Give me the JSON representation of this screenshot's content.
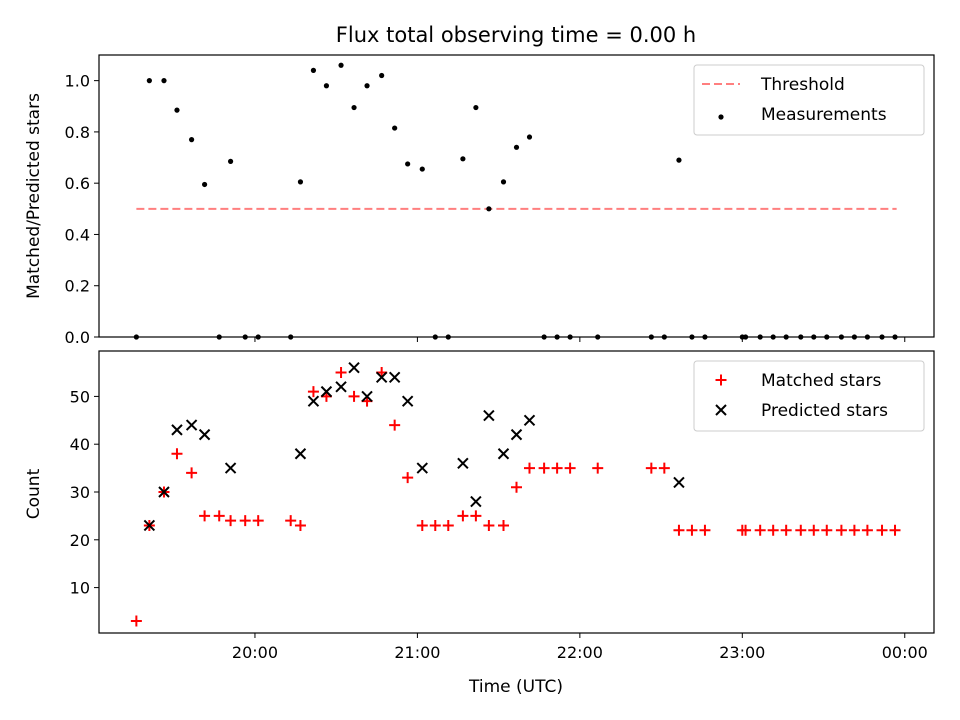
{
  "chart_data": {
    "title": "Flux total observing time = 0.00 h",
    "xlabel": "Time (UTC)",
    "x_unit": "hours",
    "xlim": [
      19.04,
      24.18
    ],
    "x_ticks": [
      {
        "value": 20,
        "label": "20:00"
      },
      {
        "value": 21,
        "label": "21:00"
      },
      {
        "value": 22,
        "label": "22:00"
      },
      {
        "value": 23,
        "label": "23:00"
      },
      {
        "value": 24,
        "label": "00:00"
      }
    ],
    "charts": [
      {
        "type": "scatter",
        "ylabel": "Matched/Predicted stars",
        "ylim": [
          0,
          1.1
        ],
        "y_ticks": [
          0.0,
          0.2,
          0.4,
          0.6,
          0.8,
          1.0
        ],
        "y_tick_labels": [
          "0.0",
          "0.2",
          "0.4",
          "0.6",
          "0.8",
          "1.0"
        ],
        "legend": "top-right",
        "threshold": {
          "name": "Threshold",
          "value": 0.5,
          "x_range": [
            19.27,
            23.95
          ],
          "color": "#ff7f7f"
        },
        "series": [
          {
            "name": "Measurements",
            "marker": "dot",
            "color": "#000000",
            "points": [
              [
                19.27,
                0.0
              ],
              [
                19.35,
                1.0
              ],
              [
                19.44,
                1.0
              ],
              [
                19.52,
                0.885
              ],
              [
                19.61,
                0.77
              ],
              [
                19.69,
                0.595
              ],
              [
                19.78,
                0.0
              ],
              [
                19.85,
                0.685
              ],
              [
                19.94,
                0.0
              ],
              [
                20.02,
                0.0
              ],
              [
                20.22,
                0.0
              ],
              [
                20.28,
                0.605
              ],
              [
                20.36,
                1.04
              ],
              [
                20.44,
                0.98
              ],
              [
                20.53,
                1.06
              ],
              [
                20.61,
                0.895
              ],
              [
                20.69,
                0.98
              ],
              [
                20.78,
                1.02
              ],
              [
                20.86,
                0.815
              ],
              [
                20.94,
                0.675
              ],
              [
                21.03,
                0.655
              ],
              [
                21.11,
                0.0
              ],
              [
                21.19,
                0.0
              ],
              [
                21.28,
                0.695
              ],
              [
                21.36,
                0.895
              ],
              [
                21.44,
                0.5
              ],
              [
                21.53,
                0.605
              ],
              [
                21.61,
                0.74
              ],
              [
                21.69,
                0.78
              ],
              [
                21.78,
                0.0
              ],
              [
                21.86,
                0.0
              ],
              [
                21.94,
                0.0
              ],
              [
                22.11,
                0.0
              ],
              [
                22.44,
                0.0
              ],
              [
                22.52,
                0.0
              ],
              [
                22.61,
                0.69
              ],
              [
                22.69,
                0.0
              ],
              [
                22.77,
                0.0
              ],
              [
                23.0,
                0.0
              ],
              [
                23.02,
                0.0
              ],
              [
                23.11,
                0.0
              ],
              [
                23.19,
                0.0
              ],
              [
                23.27,
                0.0
              ],
              [
                23.36,
                0.0
              ],
              [
                23.44,
                0.0
              ],
              [
                23.52,
                0.0
              ],
              [
                23.61,
                0.0
              ],
              [
                23.69,
                0.0
              ],
              [
                23.77,
                0.0
              ],
              [
                23.86,
                0.0
              ],
              [
                23.94,
                0.0
              ]
            ]
          }
        ]
      },
      {
        "type": "scatter",
        "ylabel": "Count",
        "ylim": [
          0.5,
          59.5
        ],
        "y_ticks": [
          10,
          20,
          30,
          40,
          50
        ],
        "y_tick_labels": [
          "10",
          "20",
          "30",
          "40",
          "50"
        ],
        "legend": "top-right",
        "series": [
          {
            "name": "Matched stars",
            "marker": "plus",
            "color": "#ff0000",
            "points": [
              [
                19.27,
                3
              ],
              [
                19.35,
                23
              ],
              [
                19.44,
                30
              ],
              [
                19.52,
                38
              ],
              [
                19.61,
                34
              ],
              [
                19.69,
                25
              ],
              [
                19.78,
                25
              ],
              [
                19.85,
                24
              ],
              [
                19.94,
                24
              ],
              [
                20.02,
                24
              ],
              [
                20.22,
                24
              ],
              [
                20.28,
                23
              ],
              [
                20.36,
                51
              ],
              [
                20.44,
                50
              ],
              [
                20.53,
                55
              ],
              [
                20.61,
                50
              ],
              [
                20.69,
                49
              ],
              [
                20.78,
                55
              ],
              [
                20.86,
                44
              ],
              [
                20.94,
                33
              ],
              [
                21.03,
                23
              ],
              [
                21.11,
                23
              ],
              [
                21.19,
                23
              ],
              [
                21.28,
                25
              ],
              [
                21.36,
                25
              ],
              [
                21.44,
                23
              ],
              [
                21.53,
                23
              ],
              [
                21.61,
                31
              ],
              [
                21.69,
                35
              ],
              [
                21.78,
                35
              ],
              [
                21.86,
                35
              ],
              [
                21.94,
                35
              ],
              [
                22.11,
                35
              ],
              [
                22.44,
                35
              ],
              [
                22.52,
                35
              ],
              [
                22.61,
                22
              ],
              [
                22.69,
                22
              ],
              [
                22.77,
                22
              ],
              [
                23.0,
                22
              ],
              [
                23.02,
                22
              ],
              [
                23.11,
                22
              ],
              [
                23.19,
                22
              ],
              [
                23.27,
                22
              ],
              [
                23.36,
                22
              ],
              [
                23.44,
                22
              ],
              [
                23.52,
                22
              ],
              [
                23.61,
                22
              ],
              [
                23.69,
                22
              ],
              [
                23.77,
                22
              ],
              [
                23.86,
                22
              ],
              [
                23.94,
                22
              ]
            ]
          },
          {
            "name": "Predicted stars",
            "marker": "x",
            "color": "#000000",
            "points": [
              [
                19.35,
                23
              ],
              [
                19.44,
                30
              ],
              [
                19.52,
                43
              ],
              [
                19.61,
                44
              ],
              [
                19.69,
                42
              ],
              [
                19.85,
                35
              ],
              [
                20.28,
                38
              ],
              [
                20.36,
                49
              ],
              [
                20.44,
                51
              ],
              [
                20.53,
                52
              ],
              [
                20.61,
                56
              ],
              [
                20.69,
                50
              ],
              [
                20.78,
                54
              ],
              [
                20.86,
                54
              ],
              [
                20.94,
                49
              ],
              [
                21.03,
                35
              ],
              [
                21.28,
                36
              ],
              [
                21.36,
                28
              ],
              [
                21.44,
                46
              ],
              [
                21.53,
                38
              ],
              [
                21.61,
                42
              ],
              [
                21.69,
                45
              ],
              [
                22.61,
                32
              ]
            ]
          }
        ]
      }
    ]
  }
}
